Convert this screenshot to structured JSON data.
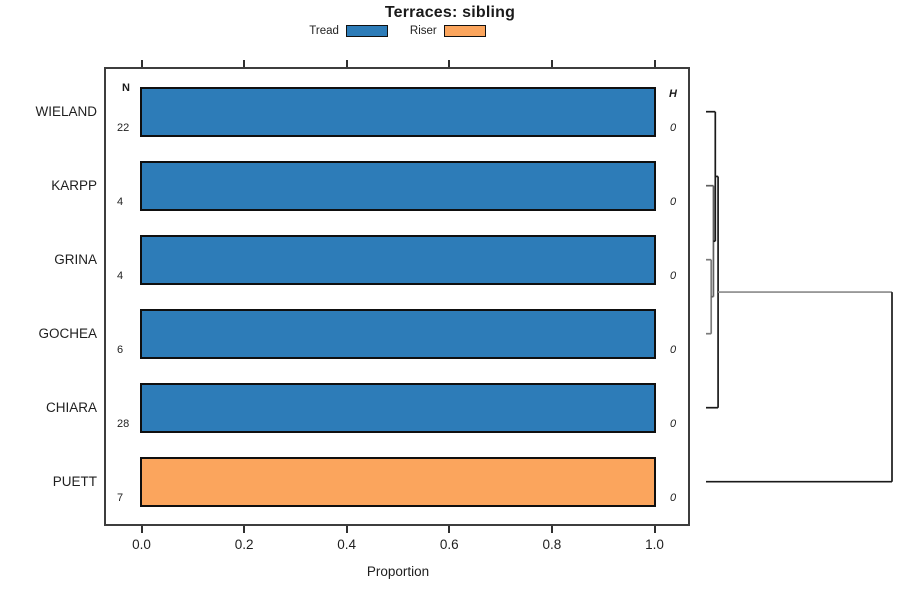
{
  "title": "Terraces: sibling",
  "legend": {
    "items": [
      {
        "label": "Tread",
        "color": "#2d7cb8"
      },
      {
        "label": "Riser",
        "color": "#fba55d"
      }
    ]
  },
  "chart_data": {
    "type": "bar",
    "orientation": "horizontal",
    "title": "Terraces: sibling",
    "xlabel": "Proportion",
    "xlim": [
      0,
      1
    ],
    "xticks": [
      "0.0",
      "0.2",
      "0.4",
      "0.6",
      "0.8",
      "1.0"
    ],
    "grid": false,
    "legend_position": "top-center",
    "columns": {
      "left_header": "N",
      "right_header": "H"
    },
    "rows": [
      {
        "label": "WIELAND",
        "n": "22",
        "value": 1.0,
        "series": "Tread",
        "h": "0"
      },
      {
        "label": "KARPP",
        "n": "4",
        "value": 1.0,
        "series": "Tread",
        "h": "0"
      },
      {
        "label": "GRINA",
        "n": "4",
        "value": 1.0,
        "series": "Tread",
        "h": "0"
      },
      {
        "label": "GOCHEA",
        "n": "6",
        "value": 1.0,
        "series": "Tread",
        "h": "0"
      },
      {
        "label": "CHIARA",
        "n": "28",
        "value": 1.0,
        "series": "Tread",
        "h": "0"
      },
      {
        "label": "PUETT",
        "n": "7",
        "value": 1.0,
        "series": "Riser",
        "h": "0"
      }
    ],
    "series_colors": {
      "Tread": "#2d7cb8",
      "Riser": "#fba55d"
    }
  },
  "dendrogram": {
    "orientation": "right-of-chart",
    "leaves": [
      "WIELAND",
      "KARPP",
      "GRINA",
      "GOCHEA",
      "CHIARA",
      "PUETT"
    ],
    "merges": [
      {
        "a": "GRINA",
        "b": "GOCHEA",
        "height": 0.028,
        "color": "#7b7b7b"
      },
      {
        "a": "KARPP",
        "b": 0,
        "height": 0.04,
        "color": "#606060"
      },
      {
        "a": "WIELAND",
        "b": 1,
        "height": 0.05,
        "color": "#1a1a1a"
      },
      {
        "a": 2,
        "b": "CHIARA",
        "height": 0.065,
        "color": "#1a1a1a"
      },
      {
        "a": 3,
        "b": "PUETT",
        "height": 1.0,
        "color": "#1a1a1a",
        "color_a": "#8a8a8a"
      }
    ]
  }
}
